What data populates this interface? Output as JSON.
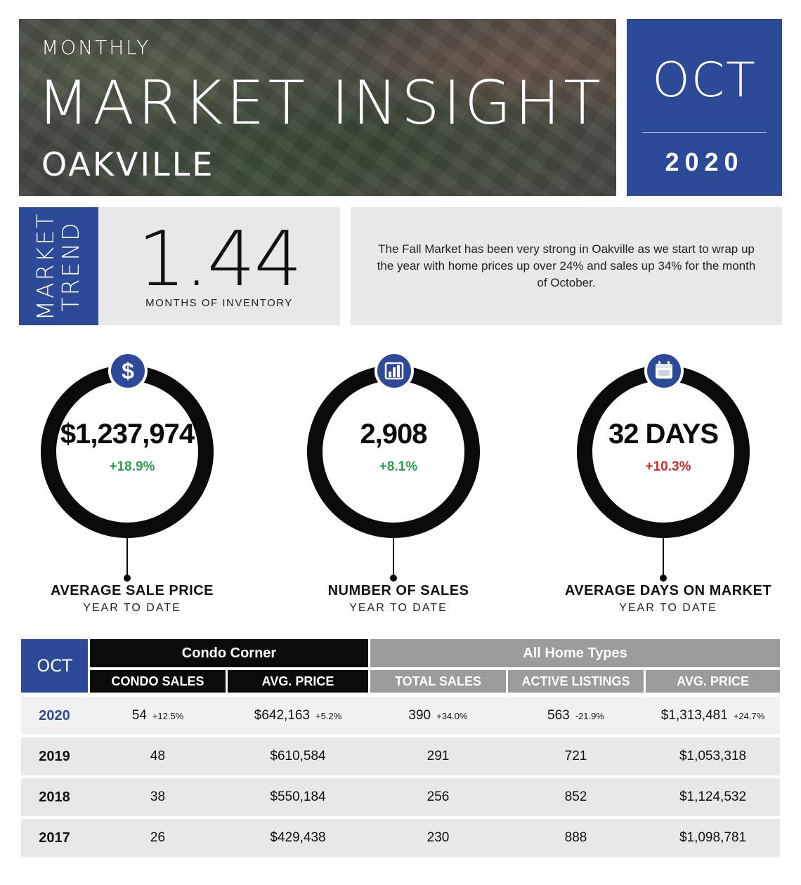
{
  "header": {
    "kicker": "MONTHLY",
    "title": "MARKET INSIGHT",
    "city": "OAKVILLE",
    "month": "OCT",
    "year": "2020"
  },
  "trend": {
    "tab_line1": "MARKET",
    "tab_line2": "TREND",
    "value": "1.44",
    "label": "MONTHS OF INVENTORY",
    "summary": "The Fall Market has been very strong in Oakville as we start to wrap up the year with home prices up over 24% and sales up 34% for the month of October."
  },
  "stats": [
    {
      "icon": "dollar-icon",
      "value": "$1,237,974",
      "change": "+18.9%",
      "label": "AVERAGE SALE PRICE",
      "sub": "YEAR TO DATE"
    },
    {
      "icon": "bar-chart-icon",
      "value": "2,908",
      "change": "+8.1%",
      "label": "NUMBER OF SALES",
      "sub": "YEAR TO DATE"
    },
    {
      "icon": "calendar-icon",
      "value": "32 DAYS",
      "change": "+10.3%",
      "label": "AVERAGE DAYS ON MARKET",
      "sub": "YEAR TO DATE"
    }
  ],
  "colors": {
    "accent": "#2d4a99",
    "positive": "#2e9e4f",
    "negative": "#d22b2b"
  },
  "table": {
    "corner": "OCT",
    "group_condo": "Condo Corner",
    "group_all": "All Home Types",
    "columns": [
      "CONDO SALES",
      "AVG. PRICE",
      "TOTAL SALES",
      "ACTIVE LISTINGS",
      "AVG. PRICE"
    ],
    "rows": [
      {
        "year": "2020",
        "cells": [
          {
            "value": "54",
            "change": "+12.5%"
          },
          {
            "value": "$642,163",
            "change": "+5.2%"
          },
          {
            "value": "390",
            "change": "+34.0%"
          },
          {
            "value": "563",
            "change": "-21.9%"
          },
          {
            "value": "$1,313,481",
            "change": "+24.7%"
          }
        ]
      },
      {
        "year": "2019",
        "cells": [
          {
            "value": "48"
          },
          {
            "value": "$610,584"
          },
          {
            "value": "291"
          },
          {
            "value": "721"
          },
          {
            "value": "$1,053,318"
          }
        ]
      },
      {
        "year": "2018",
        "cells": [
          {
            "value": "38"
          },
          {
            "value": "$550,184"
          },
          {
            "value": "256"
          },
          {
            "value": "852"
          },
          {
            "value": "$1,124,532"
          }
        ]
      },
      {
        "year": "2017",
        "cells": [
          {
            "value": "26"
          },
          {
            "value": "$429,438"
          },
          {
            "value": "230"
          },
          {
            "value": "888"
          },
          {
            "value": "$1,098,781"
          }
        ]
      }
    ]
  }
}
